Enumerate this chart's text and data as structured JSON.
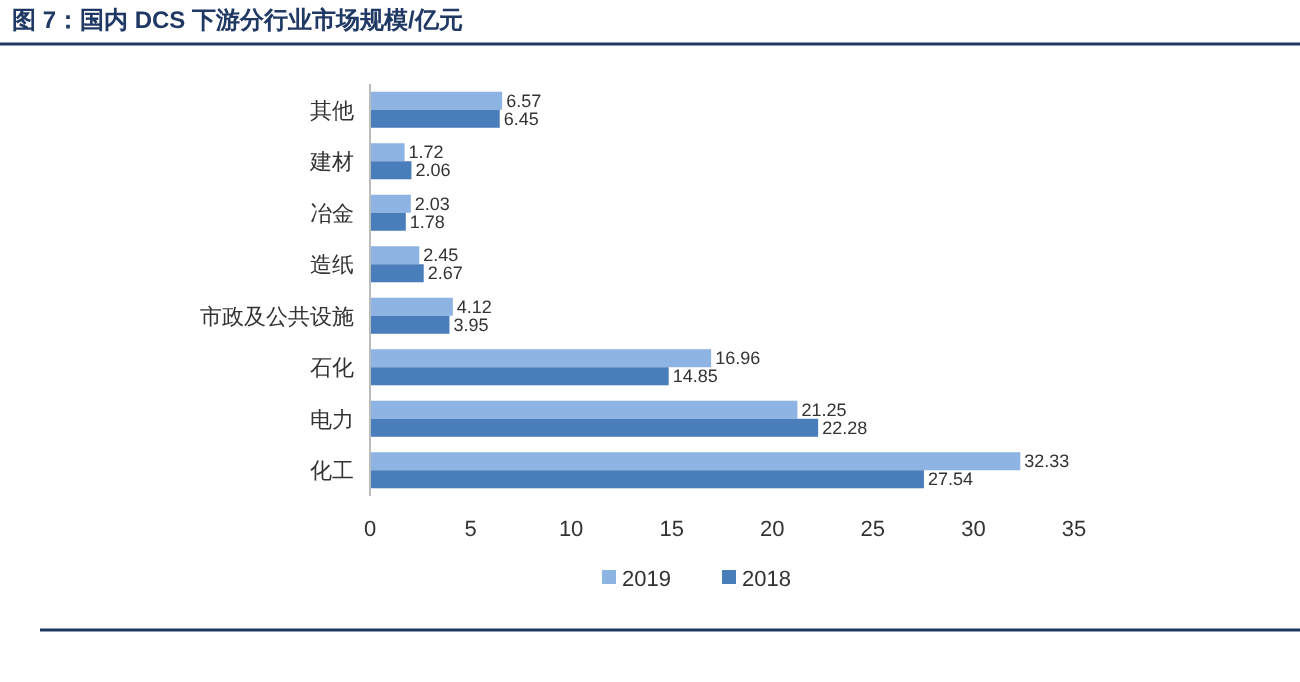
{
  "chart_data": {
    "type": "bar",
    "orientation": "horizontal",
    "title": "图 7：国内 DCS 下游分行业市场规模/亿元",
    "categories": [
      "其他",
      "建材",
      "冶金",
      "造纸",
      "市政及公共设施",
      "石化",
      "电力",
      "化工"
    ],
    "series": [
      {
        "name": "2019",
        "color": "#8eb4e3",
        "values": [
          6.57,
          1.72,
          2.03,
          2.45,
          4.12,
          16.96,
          21.25,
          32.33
        ]
      },
      {
        "name": "2018",
        "color": "#4a7ebb",
        "values": [
          6.45,
          2.06,
          1.78,
          2.67,
          3.95,
          14.85,
          22.28,
          27.54
        ]
      }
    ],
    "xlim": [
      0,
      35
    ],
    "xticks": [
      0,
      5,
      10,
      15,
      20,
      25,
      30,
      35
    ],
    "data_labels": true,
    "legend": "bottom",
    "grid": false
  }
}
